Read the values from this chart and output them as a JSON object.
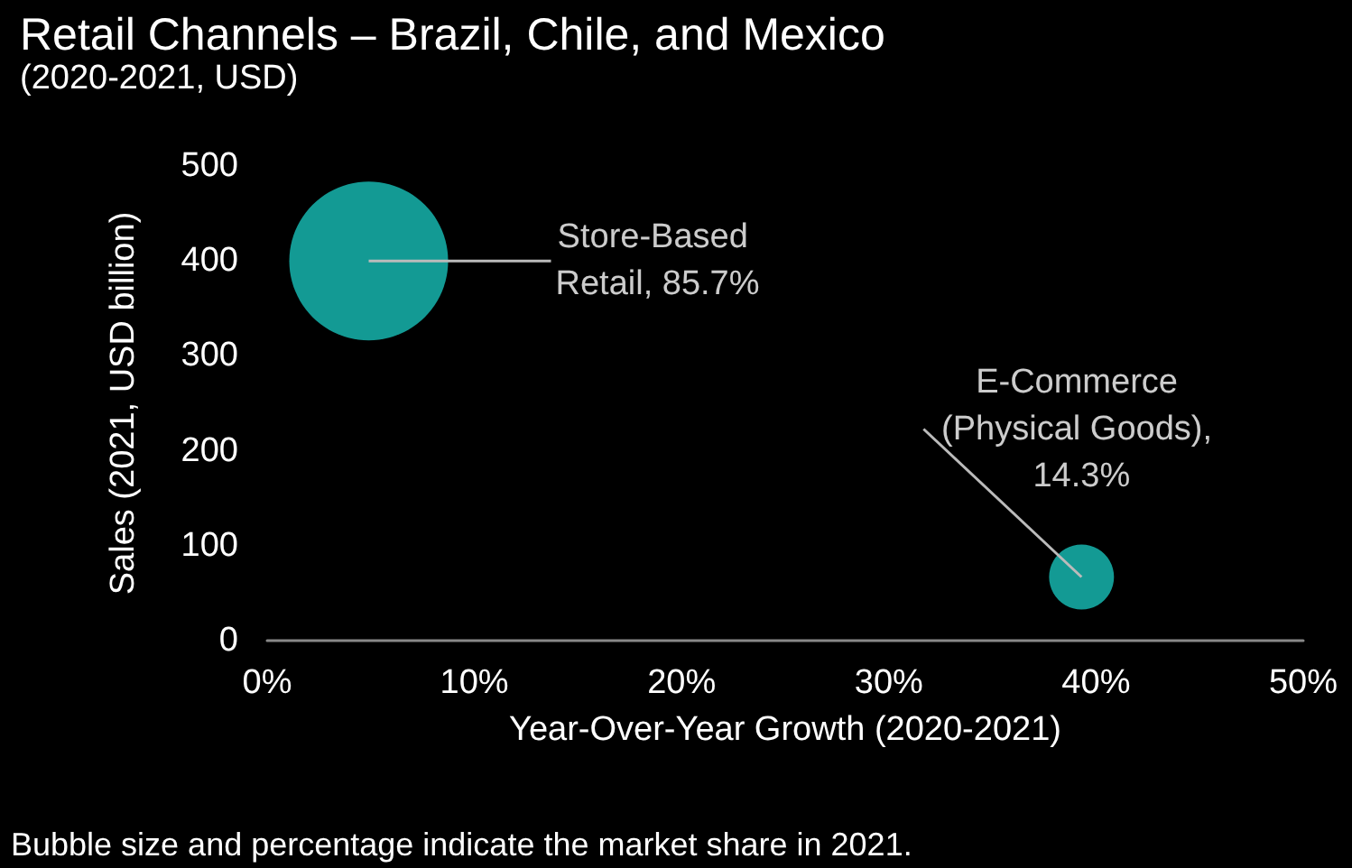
{
  "chart_data": {
    "type": "bubble",
    "title": "Retail Channels – Brazil, Chile, and Mexico",
    "subtitle": "(2020-2021, USD)",
    "xlabel": "Year-Over-Year Growth (2020-2021)",
    "ylabel": "Sales (2021, USD billion)",
    "x": [
      4.9,
      39.3
    ],
    "values": [
      400,
      67
    ],
    "sizes": [
      1,
      0.167
    ],
    "color": "#139a94",
    "xlim": [
      0,
      50
    ],
    "xticks": [
      {
        "value": 0,
        "label": "0%"
      },
      {
        "value": 10,
        "label": "10%"
      },
      {
        "value": 20,
        "label": "20%"
      },
      {
        "value": 30,
        "label": "30%"
      },
      {
        "value": 40,
        "label": "40%"
      },
      {
        "value": 50,
        "label": "50%"
      }
    ],
    "ylim": [
      0,
      500
    ],
    "yticks": [
      0,
      100,
      200,
      300,
      400,
      500
    ],
    "grid": false,
    "annotations": [
      {
        "text": "Store-Based Retail, 85.7%",
        "x": 4.9,
        "y": 400
      },
      {
        "text": "E-Commerce (Physical Goods), 14.3%",
        "x": 39.3,
        "y": 67
      },
      "Bubble size and percentage indicate the market share in 2021."
    ]
  }
}
